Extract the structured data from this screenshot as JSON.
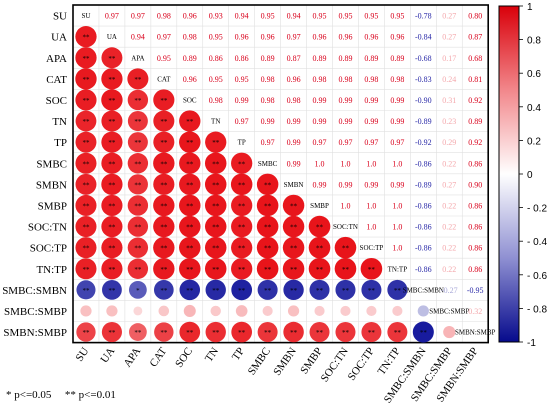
{
  "chart_data": {
    "type": "heatmap",
    "variables": [
      "SU",
      "UA",
      "APA",
      "CAT",
      "SOC",
      "TN",
      "TP",
      "SMBC",
      "SMBN",
      "SMBP",
      "SOC:TN",
      "SOC:TP",
      "TN:TP",
      "SMBC:SMBN",
      "SMBC:SMBP",
      "SMBN:SMBP"
    ],
    "upper_values": [
      [
        "",
        "0.97",
        "0.97",
        "0.98",
        "0.96",
        "0.93",
        "0.94",
        "0.95",
        "0.94",
        "0.95",
        "0.95",
        "0.95",
        "0.95",
        "-0.78",
        "0.27",
        "0.80"
      ],
      [
        "",
        "",
        "0.94",
        "0.97",
        "0.98",
        "0.95",
        "0.96",
        "0.96",
        "0.97",
        "0.96",
        "0.96",
        "0.96",
        "0.96",
        "-0.84",
        "0.27",
        "0.87"
      ],
      [
        "",
        "",
        "",
        "0.95",
        "0.89",
        "0.86",
        "0.86",
        "0.89",
        "0.87",
        "0.89",
        "0.89",
        "0.89",
        "0.89",
        "-0.68",
        "0.17",
        "0.68"
      ],
      [
        "",
        "",
        "",
        "",
        "0.96",
        "0.95",
        "0.95",
        "0.98",
        "0.96",
        "0.98",
        "0.98",
        "0.98",
        "0.98",
        "-0.83",
        "0.24",
        "0.81"
      ],
      [
        "",
        "",
        "",
        "",
        "",
        "0.98",
        "0.99",
        "0.98",
        "0.98",
        "0.99",
        "0.99",
        "0.99",
        "0.99",
        "-0.90",
        "0.31",
        "0.92"
      ],
      [
        "",
        "",
        "",
        "",
        "",
        "",
        "0.97",
        "0.99",
        "0.99",
        "0.99",
        "0.99",
        "0.99",
        "0.99",
        "-0.89",
        "0.23",
        "0.89"
      ],
      [
        "",
        "",
        "",
        "",
        "",
        "",
        "",
        "0.97",
        "0.99",
        "0.97",
        "0.97",
        "0.97",
        "0.97",
        "-0.92",
        "0.29",
        "0.92"
      ],
      [
        "",
        "",
        "",
        "",
        "",
        "",
        "",
        "",
        "0.99",
        "1.0",
        "1.0",
        "1.0",
        "1.0",
        "-0.86",
        "0.22",
        "0.86"
      ],
      [
        "",
        "",
        "",
        "",
        "",
        "",
        "",
        "",
        "",
        "0.99",
        "0.99",
        "0.99",
        "0.99",
        "-0.89",
        "0.27",
        "0.90"
      ],
      [
        "",
        "",
        "",
        "",
        "",
        "",
        "",
        "",
        "",
        "",
        "1.0",
        "1.0",
        "1.0",
        "-0.86",
        "0.22",
        "0.86"
      ],
      [
        "",
        "",
        "",
        "",
        "",
        "",
        "",
        "",
        "",
        "",
        "",
        "1.0",
        "1.0",
        "-0.86",
        "0.22",
        "0.86"
      ],
      [
        "",
        "",
        "",
        "",
        "",
        "",
        "",
        "",
        "",
        "",
        "",
        "",
        "1.0",
        "-0.86",
        "0.22",
        "0.86"
      ],
      [
        "",
        "",
        "",
        "",
        "",
        "",
        "",
        "",
        "",
        "",
        "",
        "",
        "",
        "-0.86",
        "0.22",
        "0.86"
      ],
      [
        "",
        "",
        "",
        "",
        "",
        "",
        "",
        "",
        "",
        "",
        "",
        "",
        "",
        "",
        "-0.27",
        "-0.95"
      ],
      [
        "",
        "",
        "",
        "",
        "",
        "",
        "",
        "",
        "",
        "",
        "",
        "",
        "",
        "",
        "",
        "0.32"
      ],
      [
        "",
        "",
        "",
        "",
        "",
        "",
        "",
        "",
        "",
        "",
        "",
        "",
        "",
        "",
        "",
        ""
      ]
    ],
    "lower_significance": [
      [],
      [
        "**"
      ],
      [
        "**",
        "**"
      ],
      [
        "**",
        "**",
        "**"
      ],
      [
        "**",
        "**",
        "**",
        "**"
      ],
      [
        "**",
        "**",
        "**",
        "**",
        "**"
      ],
      [
        "**",
        "**",
        "**",
        "**",
        "**",
        "**"
      ],
      [
        "**",
        "**",
        "**",
        "**",
        "**",
        "**",
        "**"
      ],
      [
        "**",
        "**",
        "**",
        "**",
        "**",
        "**",
        "**",
        "**"
      ],
      [
        "**",
        "**",
        "**",
        "**",
        "**",
        "**",
        "**",
        "**",
        "**"
      ],
      [
        "**",
        "**",
        "**",
        "**",
        "**",
        "**",
        "**",
        "**",
        "**",
        "**"
      ],
      [
        "**",
        "**",
        "**",
        "**",
        "**",
        "**",
        "**",
        "**",
        "**",
        "**",
        "**"
      ],
      [
        "**",
        "**",
        "**",
        "**",
        "**",
        "**",
        "**",
        "**",
        "**",
        "**",
        "**",
        "**"
      ],
      [
        "**",
        "**",
        "*",
        "**",
        "**",
        "**",
        "**",
        "**",
        "**",
        "**",
        "**",
        "**",
        "**"
      ],
      [
        "",
        "",
        "",
        "",
        "",
        "",
        "",
        "",
        "",
        "",
        "",
        "",
        "",
        ""
      ],
      [
        "**",
        "**",
        "**",
        "**",
        "**",
        "**",
        "**",
        "**",
        "**",
        "**",
        "**",
        "**",
        "**",
        "**",
        ""
      ]
    ],
    "colorbar": {
      "range": [
        -1,
        1
      ],
      "ticks": [
        "1",
        "0.8",
        "0.6",
        "0.4",
        "0.2",
        "0",
        "- 0.2",
        "- 0.4",
        "- 0.6",
        "- 0.8",
        "-1"
      ],
      "colors": {
        "positive": "#e8141a",
        "neutral": "#ffffff",
        "negative": "#0c0f99"
      }
    }
  },
  "footnote": {
    "single": "* p<=0.05",
    "double": "** p<=0.01"
  }
}
